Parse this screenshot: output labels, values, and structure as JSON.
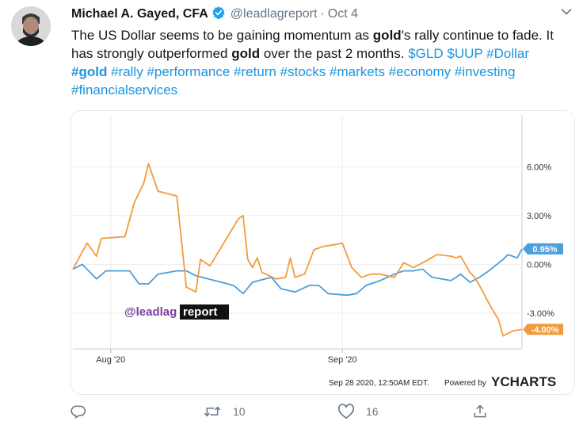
{
  "tweet": {
    "author_name": "Michael A. Gayed, CFA",
    "handle": "@leadlagreport",
    "separator": "·",
    "date": "Oct 4",
    "text_parts": [
      {
        "text": "The US Dollar seems to be gaining momentum as ",
        "style": "plain"
      },
      {
        "text": "gold",
        "style": "bold"
      },
      {
        "text": "'s rally continue to fade. It has strongly outperformed ",
        "style": "plain"
      },
      {
        "text": "gold",
        "style": "bold"
      },
      {
        "text": " over the past 2 months. ",
        "style": "plain"
      },
      {
        "text": "$GLD",
        "style": "link"
      },
      {
        "text": " ",
        "style": "plain"
      },
      {
        "text": "$UUP",
        "style": "link"
      },
      {
        "text": " ",
        "style": "plain"
      },
      {
        "text": "#Dollar",
        "style": "link"
      },
      {
        "text": " ",
        "style": "plain"
      },
      {
        "text": "#gold",
        "style": "link-bold"
      },
      {
        "text": " ",
        "style": "plain"
      },
      {
        "text": "#rally",
        "style": "link"
      },
      {
        "text": " ",
        "style": "plain"
      },
      {
        "text": "#performance",
        "style": "link"
      },
      {
        "text": " ",
        "style": "plain"
      },
      {
        "text": "#return",
        "style": "link"
      },
      {
        "text": " ",
        "style": "plain"
      },
      {
        "text": "#stocks",
        "style": "link"
      },
      {
        "text": " ",
        "style": "plain"
      },
      {
        "text": "#markets",
        "style": "link"
      },
      {
        "text": " ",
        "style": "plain"
      },
      {
        "text": "#economy",
        "style": "link"
      },
      {
        "text": " ",
        "style": "plain"
      },
      {
        "text": "#investing",
        "style": "link"
      },
      {
        "text": " ",
        "style": "plain"
      },
      {
        "text": "#financialservices",
        "style": "link"
      }
    ],
    "accent_color": "#1b95e0",
    "verified_color": "#1da1f2"
  },
  "actions": {
    "reply_icon": "reply-icon",
    "retweet_icon": "retweet-icon",
    "retweet_count": "10",
    "like_icon": "heart-icon",
    "like_count": "16",
    "share_icon": "share-icon"
  },
  "chart_data": {
    "type": "line",
    "watermark_handle": "@leadlag",
    "watermark_suffix": "report",
    "footer_timestamp": "Sep 28 2020, 12:50AM EDT.",
    "footer_powered": "Powered by",
    "footer_brand": "YCHARTS",
    "x_tick_labels": [
      "Aug '20",
      "Sep '20"
    ],
    "y_tick_labels": [
      {
        "value": 6,
        "label": "6.00%"
      },
      {
        "value": 3,
        "label": "3.00%"
      },
      {
        "value": 0,
        "label": "0.00%"
      },
      {
        "value": -3,
        "label": "-3.00%"
      }
    ],
    "ylim": [
      -5.2,
      8.7
    ],
    "xlim": [
      0,
      95
    ],
    "x_tick_positions": [
      8,
      57
    ],
    "grid": true,
    "series": [
      {
        "color": "#4a9fdc",
        "end_label": "0.95%",
        "end_value": 0.95,
        "points": [
          [
            0,
            -0.3
          ],
          [
            2,
            0.0
          ],
          [
            5,
            -0.9
          ],
          [
            7,
            -0.4
          ],
          [
            12,
            -0.4
          ],
          [
            14,
            -1.2
          ],
          [
            16,
            -1.2
          ],
          [
            18,
            -0.6
          ],
          [
            22,
            -0.4
          ],
          [
            24,
            -0.4
          ],
          [
            26,
            -0.7
          ],
          [
            34,
            -1.3
          ],
          [
            36,
            -1.8
          ],
          [
            38,
            -1.1
          ],
          [
            42,
            -0.8
          ],
          [
            44,
            -1.5
          ],
          [
            47,
            -1.7
          ],
          [
            50,
            -1.3
          ],
          [
            52,
            -1.3
          ],
          [
            54,
            -1.8
          ],
          [
            58,
            -1.9
          ],
          [
            60,
            -1.8
          ],
          [
            62,
            -1.3
          ],
          [
            65,
            -1.0
          ],
          [
            68,
            -0.6
          ],
          [
            70,
            -0.4
          ],
          [
            72,
            -0.4
          ],
          [
            74,
            -0.3
          ],
          [
            76,
            -0.8
          ],
          [
            80,
            -1.0
          ],
          [
            82,
            -0.6
          ],
          [
            84,
            -1.1
          ],
          [
            86,
            -0.8
          ],
          [
            88,
            -0.4
          ],
          [
            91,
            0.3
          ],
          [
            92,
            0.6
          ],
          [
            94,
            0.4
          ],
          [
            95,
            0.95
          ]
        ]
      },
      {
        "color": "#f39a3c",
        "end_label": "-4.00%",
        "end_value": -4.0,
        "points": [
          [
            0,
            -0.3
          ],
          [
            3,
            1.3
          ],
          [
            5,
            0.5
          ],
          [
            6,
            1.6
          ],
          [
            11,
            1.7
          ],
          [
            13,
            3.8
          ],
          [
            15,
            5.0
          ],
          [
            16,
            6.2
          ],
          [
            18,
            4.5
          ],
          [
            22,
            4.2
          ],
          [
            24,
            -1.4
          ],
          [
            26,
            -1.7
          ],
          [
            27,
            0.3
          ],
          [
            29,
            -0.1
          ],
          [
            35,
            2.8
          ],
          [
            36,
            3.0
          ],
          [
            37,
            0.3
          ],
          [
            38,
            -0.2
          ],
          [
            39,
            0.4
          ],
          [
            40,
            -0.5
          ],
          [
            43,
            -0.9
          ],
          [
            45,
            -0.8
          ],
          [
            46,
            0.4
          ],
          [
            47,
            -0.8
          ],
          [
            49,
            -0.6
          ],
          [
            51,
            0.9
          ],
          [
            53,
            1.1
          ],
          [
            55,
            1.2
          ],
          [
            57,
            1.3
          ],
          [
            59,
            -0.2
          ],
          [
            61,
            -0.8
          ],
          [
            63,
            -0.6
          ],
          [
            65,
            -0.6
          ],
          [
            68,
            -0.8
          ],
          [
            70,
            0.1
          ],
          [
            72,
            -0.2
          ],
          [
            74,
            0.1
          ],
          [
            77,
            0.6
          ],
          [
            80,
            0.5
          ],
          [
            81,
            0.4
          ],
          [
            82,
            0.5
          ],
          [
            84,
            -0.5
          ],
          [
            85,
            -0.8
          ],
          [
            86,
            -1.3
          ],
          [
            88,
            -2.4
          ],
          [
            90,
            -3.4
          ],
          [
            91,
            -4.4
          ],
          [
            93,
            -4.1
          ],
          [
            95,
            -4.0
          ]
        ]
      }
    ]
  }
}
